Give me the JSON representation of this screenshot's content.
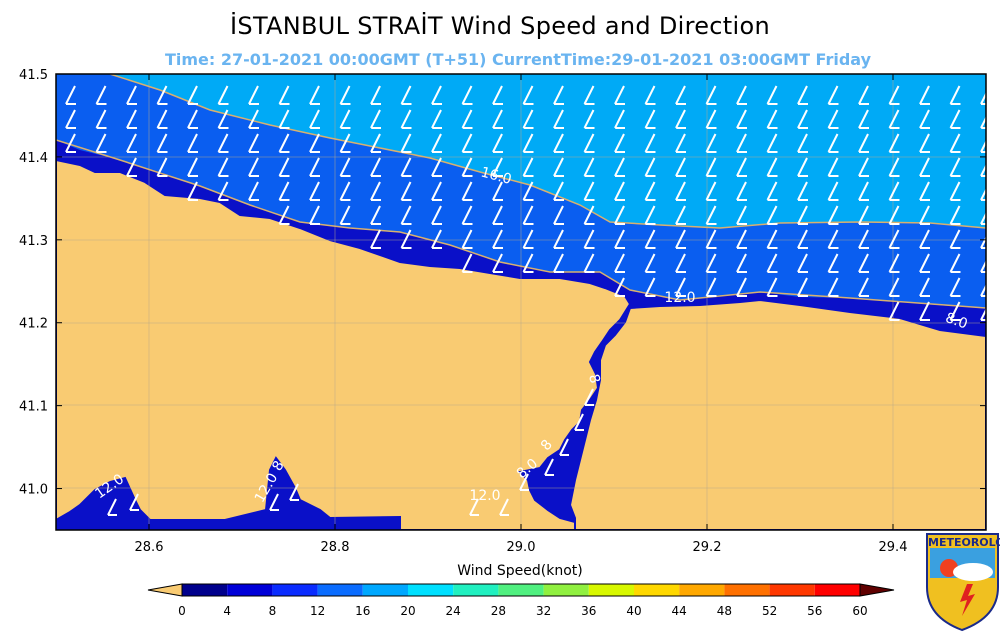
{
  "header": {
    "title": "İSTANBUL STRAİT  Wind Speed and Direction",
    "subtitle": "Time: 27-01-2021 00:00GMT (T+51)  CurrentTime:29-01-2021 03:00GMT Friday"
  },
  "map": {
    "lon_range": [
      28.5,
      29.5
    ],
    "lat_range": [
      40.95,
      41.5
    ],
    "x_ticks": [
      "28.6",
      "28.8",
      "29.0",
      "29.2",
      "29.4"
    ],
    "y_ticks": [
      "41.5",
      "41.4",
      "41.3",
      "41.2",
      "41.1",
      "41.0"
    ],
    "contour_labels": [
      "16.0",
      "12.0",
      "8.0",
      "8",
      "8",
      "8.0",
      "12.0",
      "12.0",
      "8",
      "12.0"
    ],
    "land_color": "#f9cb72",
    "speed_colors": {
      "low": "#0a10c8",
      "mid": "#0a5ef0",
      "high": "#00aaf6"
    }
  },
  "colorbar": {
    "label": "Wind Speed(knot)",
    "ticks": [
      "0",
      "4",
      "8",
      "12",
      "16",
      "20",
      "24",
      "28",
      "32",
      "36",
      "40",
      "44",
      "48",
      "52",
      "56",
      "60"
    ],
    "colors": [
      "#00008c",
      "#0000d8",
      "#0a2cff",
      "#0a6cff",
      "#00a8ff",
      "#00e0ff",
      "#20f0c0",
      "#50f080",
      "#90f040",
      "#d8f800",
      "#ffd800",
      "#ffa800",
      "#ff7000",
      "#ff3800",
      "#ff0000",
      "#c00000",
      "#800000"
    ],
    "under_color": "#f9cb72",
    "over_color": "#600000"
  },
  "logo": {
    "text": "METEOROLOJİ",
    "icon": "meteoroloji-shield-icon"
  }
}
